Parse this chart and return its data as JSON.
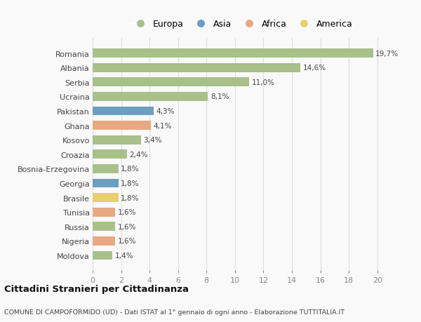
{
  "categories": [
    "Romania",
    "Albania",
    "Serbia",
    "Ucraina",
    "Pakistan",
    "Ghana",
    "Kosovo",
    "Croazia",
    "Bosnia-Erzegovina",
    "Georgia",
    "Brasile",
    "Tunisia",
    "Russia",
    "Nigeria",
    "Moldova"
  ],
  "values": [
    19.7,
    14.6,
    11.0,
    8.1,
    4.3,
    4.1,
    3.4,
    2.4,
    1.8,
    1.8,
    1.8,
    1.6,
    1.6,
    1.6,
    1.4
  ],
  "labels": [
    "19,7%",
    "14,6%",
    "11,0%",
    "8,1%",
    "4,3%",
    "4,1%",
    "3,4%",
    "2,4%",
    "1,8%",
    "1,8%",
    "1,8%",
    "1,6%",
    "1,6%",
    "1,6%",
    "1,4%"
  ],
  "continent": [
    "Europa",
    "Europa",
    "Europa",
    "Europa",
    "Asia",
    "Africa",
    "Europa",
    "Europa",
    "Europa",
    "Asia",
    "America",
    "Africa",
    "Europa",
    "Africa",
    "Europa"
  ],
  "colors": {
    "Europa": "#a8c08a",
    "Asia": "#6a9fc0",
    "Africa": "#e8a882",
    "America": "#e8d070"
  },
  "title": "Cittadini Stranieri per Cittadinanza",
  "subtitle": "COMUNE DI CAMPOFORMIDO (UD) - Dati ISTAT al 1° gennaio di ogni anno - Elaborazione TUTTITALIA.IT",
  "xlim": [
    0,
    21
  ],
  "xticks": [
    0,
    2,
    4,
    6,
    8,
    10,
    12,
    14,
    16,
    18,
    20
  ],
  "background_color": "#f9f9f9",
  "grid_color": "#dddddd",
  "legend_order": [
    "Europa",
    "Asia",
    "Africa",
    "America"
  ]
}
